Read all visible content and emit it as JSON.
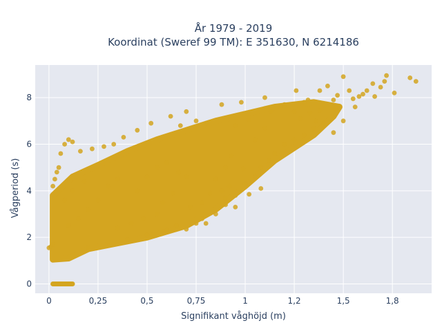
{
  "chart_data": {
    "type": "scatter",
    "title": "År 1979 - 2019",
    "subtitle": "Koordinat (Sweref 99 TM): E 351630, N 6214186",
    "xlabel": "Signifikant våghöjd (m)",
    "ylabel": "Vågperiod (s)",
    "xlim": [
      -0.07,
      1.95
    ],
    "ylim": [
      -0.4,
      9.4
    ],
    "x_ticks": [
      0,
      0.25,
      0.5,
      0.75,
      1,
      1.25,
      1.5,
      1.75
    ],
    "x_tick_labels": [
      "0",
      "0,25",
      "0,5",
      "0,75",
      "1",
      "1,2",
      "1,5",
      "1,8"
    ],
    "y_ticks": [
      0,
      2,
      4,
      6,
      8
    ],
    "y_tick_labels": [
      "0",
      "2",
      "4",
      "6",
      "8"
    ],
    "grid": true,
    "marker_color": "#d4a520",
    "plot_background": "#e5e8f0",
    "dense_region_outline": [
      [
        0.02,
        1.05
      ],
      [
        0.1,
        1.1
      ],
      [
        0.2,
        1.5
      ],
      [
        0.35,
        1.75
      ],
      [
        0.5,
        2.0
      ],
      [
        0.7,
        2.5
      ],
      [
        0.85,
        3.2
      ],
      [
        1.0,
        4.2
      ],
      [
        1.15,
        5.3
      ],
      [
        1.35,
        6.4
      ],
      [
        1.45,
        7.2
      ],
      [
        1.48,
        7.6
      ],
      [
        1.35,
        7.8
      ],
      [
        1.15,
        7.6
      ],
      [
        1.0,
        7.3
      ],
      [
        0.85,
        7.0
      ],
      [
        0.7,
        6.6
      ],
      [
        0.55,
        6.2
      ],
      [
        0.4,
        5.7
      ],
      [
        0.25,
        5.1
      ],
      [
        0.12,
        4.6
      ],
      [
        0.02,
        3.8
      ]
    ],
    "zero_period_segment": {
      "x": [
        0.02,
        0.12
      ],
      "y": 0
    },
    "points": [
      [
        1.84,
        8.85
      ],
      [
        1.87,
        8.7
      ],
      [
        1.76,
        8.2
      ],
      [
        1.72,
        8.95
      ],
      [
        1.71,
        8.7
      ],
      [
        1.69,
        8.45
      ],
      [
        1.65,
        8.6
      ],
      [
        1.62,
        8.3
      ],
      [
        1.58,
        8.05
      ],
      [
        1.56,
        7.6
      ],
      [
        1.53,
        8.3
      ],
      [
        1.5,
        8.9
      ],
      [
        1.47,
        8.1
      ],
      [
        1.45,
        7.9
      ],
      [
        1.46,
        7.5
      ],
      [
        1.42,
        8.5
      ],
      [
        1.38,
        8.3
      ],
      [
        1.32,
        7.9
      ],
      [
        1.3,
        7.8
      ],
      [
        1.26,
        8.3
      ],
      [
        1.25,
        7.4
      ],
      [
        1.2,
        7.7
      ],
      [
        1.4,
        6.9
      ],
      [
        1.45,
        6.5
      ],
      [
        1.5,
        7.0
      ],
      [
        1.1,
        8.0
      ],
      [
        0.98,
        7.8
      ],
      [
        0.88,
        7.7
      ],
      [
        0.7,
        7.4
      ],
      [
        0.62,
        7.2
      ],
      [
        0.52,
        6.9
      ],
      [
        0.45,
        6.6
      ],
      [
        0.38,
        6.3
      ],
      [
        0.33,
        6.0
      ],
      [
        0.28,
        5.9
      ],
      [
        0.22,
        5.8
      ],
      [
        0.16,
        5.7
      ],
      [
        0.12,
        6.1
      ],
      [
        0.1,
        6.2
      ],
      [
        0.08,
        6.0
      ],
      [
        0.06,
        5.6
      ],
      [
        0.05,
        5.0
      ],
      [
        0.04,
        4.8
      ],
      [
        0.03,
        4.5
      ],
      [
        0.02,
        4.2
      ],
      [
        0.01,
        1.6
      ],
      [
        0.0,
        1.55
      ],
      [
        0.02,
        1.7
      ],
      [
        0.8,
        2.6
      ],
      [
        0.78,
        2.8
      ],
      [
        0.85,
        3.0
      ],
      [
        0.9,
        3.4
      ],
      [
        0.95,
        3.8
      ],
      [
        1.0,
        4.3
      ],
      [
        1.05,
        4.6
      ],
      [
        1.08,
        5.0
      ],
      [
        1.12,
        5.3
      ],
      [
        1.15,
        5.6
      ],
      [
        1.2,
        6.0
      ],
      [
        1.25,
        6.2
      ],
      [
        1.3,
        6.4
      ],
      [
        1.35,
        6.7
      ],
      [
        0.65,
        2.5
      ],
      [
        0.7,
        2.35
      ],
      [
        0.75,
        2.6
      ],
      [
        0.6,
        2.3
      ],
      [
        0.5,
        2.1
      ],
      [
        0.4,
        1.9
      ],
      [
        0.3,
        1.8
      ],
      [
        0.2,
        1.55
      ],
      [
        0.72,
        3.3
      ],
      [
        0.78,
        3.5
      ],
      [
        0.82,
        3.9
      ],
      [
        0.88,
        4.0
      ],
      [
        0.92,
        4.2
      ],
      [
        0.85,
        4.5
      ],
      [
        0.9,
        5.0
      ],
      [
        1.05,
        6.2
      ],
      [
        1.1,
        6.7
      ],
      [
        0.9,
        3.7
      ],
      [
        0.95,
        3.3
      ],
      [
        1.02,
        3.85
      ],
      [
        1.08,
        4.1
      ],
      [
        0.99,
        4.95
      ],
      [
        0.93,
        5.5
      ],
      [
        0.6,
        5.2
      ],
      [
        0.66,
        4.8
      ],
      [
        0.7,
        4.6
      ],
      [
        0.63,
        3.9
      ],
      [
        0.58,
        3.5
      ],
      [
        0.55,
        3.0
      ],
      [
        0.48,
        2.8
      ],
      [
        0.42,
        2.6
      ],
      [
        0.35,
        2.4
      ],
      [
        0.45,
        4.0
      ],
      [
        0.5,
        4.6
      ],
      [
        0.55,
        5.0
      ],
      [
        0.35,
        4.5
      ],
      [
        0.3,
        4.2
      ],
      [
        0.25,
        3.6
      ],
      [
        0.2,
        3.2
      ],
      [
        0.15,
        2.8
      ],
      [
        0.1,
        2.5
      ],
      [
        0.08,
        3.6
      ],
      [
        0.12,
        4.0
      ],
      [
        0.18,
        4.4
      ],
      [
        1.13,
        7.4
      ],
      [
        1.18,
        7.6
      ],
      [
        1.28,
        7.1
      ],
      [
        1.33,
        7.35
      ],
      [
        1.36,
        7.0
      ],
      [
        1.38,
        7.45
      ],
      [
        1.55,
        7.95
      ],
      [
        1.6,
        8.15
      ],
      [
        1.66,
        8.05
      ],
      [
        1.02,
        7.05
      ],
      [
        0.95,
        6.8
      ],
      [
        0.8,
        6.9
      ],
      [
        0.75,
        7.0
      ],
      [
        0.67,
        6.8
      ]
    ]
  }
}
